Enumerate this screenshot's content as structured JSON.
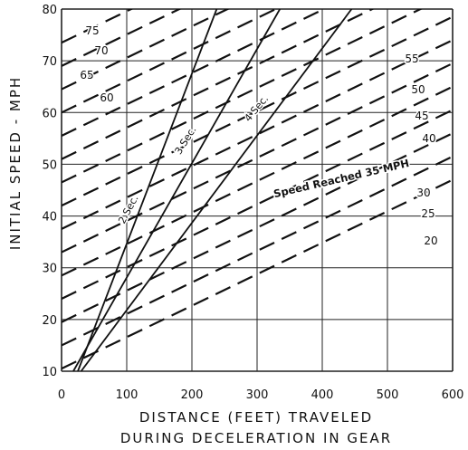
{
  "chart_data": {
    "type": "line",
    "title": "",
    "xlabel_lines": [
      "DISTANCE (FEET) TRAVELED",
      "DURING DECELERATION IN GEAR"
    ],
    "ylabel": "INITIAL SPEED - MPH",
    "xlim": [
      0,
      600
    ],
    "ylim": [
      10,
      80
    ],
    "x_ticks": [
      "0",
      "100",
      "200",
      "300",
      "400",
      "500",
      "600"
    ],
    "y_ticks": [
      "10",
      "20",
      "30",
      "40",
      "50",
      "60",
      "70",
      "80"
    ],
    "grid": true,
    "time_lines": [
      {
        "label": "2 Sec.",
        "x": [
          25,
          238
        ],
        "y": [
          10,
          80
        ]
      },
      {
        "label": "3 Sec.",
        "x": [
          18,
          335
        ],
        "y": [
          10,
          80
        ]
      },
      {
        "label": "4 Sec.",
        "x": [
          30,
          445
        ],
        "y": [
          10,
          80
        ]
      }
    ],
    "speed_reached_lines": [
      {
        "label": "75",
        "x": [
          0,
          600
        ],
        "y": [
          73.5,
          110
        ]
      },
      {
        "label": "70",
        "x": [
          0,
          600
        ],
        "y": [
          69,
          105.5
        ]
      },
      {
        "label": "65",
        "x": [
          0,
          600
        ],
        "y": [
          64.5,
          101
        ]
      },
      {
        "label": "60",
        "x": [
          0,
          600
        ],
        "y": [
          60,
          96.5
        ]
      },
      {
        "label": "",
        "x": [
          0,
          600
        ],
        "y": [
          55.5,
          92
        ]
      },
      {
        "label": "55",
        "x": [
          0,
          600
        ],
        "y": [
          51,
          87.5
        ]
      },
      {
        "label": "50",
        "x": [
          0,
          600
        ],
        "y": [
          46.5,
          83
        ]
      },
      {
        "label": "45",
        "x": [
          0,
          600
        ],
        "y": [
          42,
          78.5
        ]
      },
      {
        "label": "40",
        "x": [
          0,
          600
        ],
        "y": [
          37.5,
          74
        ]
      },
      {
        "label": "Speed Reached 35 MPH",
        "x": [
          0,
          600
        ],
        "y": [
          33,
          69.5
        ]
      },
      {
        "label": "30",
        "x": [
          0,
          600
        ],
        "y": [
          28.5,
          65
        ]
      },
      {
        "label": "25",
        "x": [
          0,
          600
        ],
        "y": [
          24,
          60.5
        ]
      },
      {
        "label": "20",
        "x": [
          0,
          600
        ],
        "y": [
          19.5,
          56
        ]
      },
      {
        "label": "",
        "x": [
          0,
          600
        ],
        "y": [
          15,
          51.5
        ]
      },
      {
        "label": "",
        "x": [
          0,
          600
        ],
        "y": [
          10.5,
          47
        ]
      }
    ]
  }
}
